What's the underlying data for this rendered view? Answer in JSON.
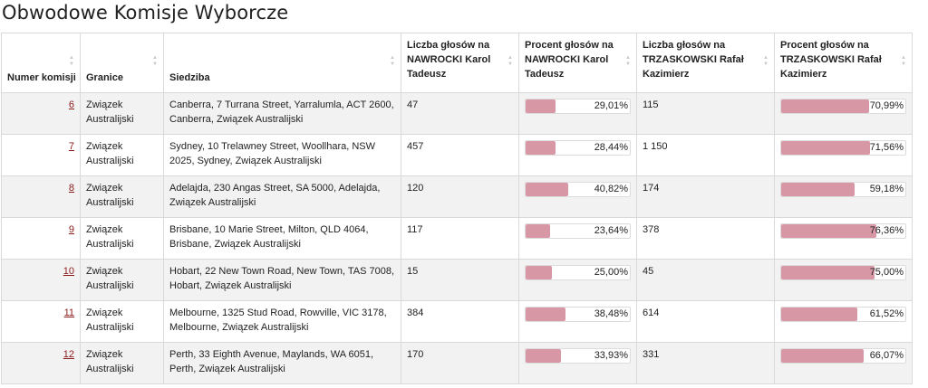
{
  "page_title": "Obwodowe Komisje Wyborcze",
  "colors": {
    "bar_fill": "#d897a4",
    "link": "#8b1a1a",
    "row_stripe": "#f2f2f2"
  },
  "table": {
    "headers": [
      "Numer komisji",
      "Granice",
      "Siedziba",
      "Liczba głosów na NAWROCKI Karol Tadeusz",
      "Procent głosów na NAWROCKI Karol Tadeusz",
      "Liczba głosów na TRZASKOWSKI Rafał Kazimierz",
      "Procent głosów na TRZASKOWSKI Rafał Kazimierz"
    ],
    "rows": [
      {
        "number": "6",
        "granice": "Związek Australijski",
        "siedziba": "Canberra, 7 Turrana Street, Yarralumla, ACT 2600, Canberra, Związek Australijski",
        "nawrocki_votes": "47",
        "nawrocki_pct": "29,01%",
        "nawrocki_frac": 0.2901,
        "trzaskowski_votes": "115",
        "trzaskowski_pct": "70,99%",
        "trzaskowski_frac": 0.7099
      },
      {
        "number": "7",
        "granice": "Związek Australijski",
        "siedziba": "Sydney, 10 Trelawney Street, Woollhara, NSW 2025, Sydney, Związek Australijski",
        "nawrocki_votes": "457",
        "nawrocki_pct": "28,44%",
        "nawrocki_frac": 0.2844,
        "trzaskowski_votes": "1 150",
        "trzaskowski_pct": "71,56%",
        "trzaskowski_frac": 0.7156
      },
      {
        "number": "8",
        "granice": "Związek Australijski",
        "siedziba": "Adelajda, 230 Angas Street, SA 5000, Adelajda, Związek Australijski",
        "nawrocki_votes": "120",
        "nawrocki_pct": "40,82%",
        "nawrocki_frac": 0.4082,
        "trzaskowski_votes": "174",
        "trzaskowski_pct": "59,18%",
        "trzaskowski_frac": 0.5918
      },
      {
        "number": "9",
        "granice": "Związek Australijski",
        "siedziba": "Brisbane, 10 Marie Street, Milton, QLD 4064, Brisbane, Związek Australijski",
        "nawrocki_votes": "117",
        "nawrocki_pct": "23,64%",
        "nawrocki_frac": 0.2364,
        "trzaskowski_votes": "378",
        "trzaskowski_pct": "76,36%",
        "trzaskowski_frac": 0.7636
      },
      {
        "number": "10",
        "granice": "Związek Australijski",
        "siedziba": "Hobart, 22 New Town Road, New Town, TAS 7008, Hobart, Związek Australijski",
        "nawrocki_votes": "15",
        "nawrocki_pct": "25,00%",
        "nawrocki_frac": 0.25,
        "trzaskowski_votes": "45",
        "trzaskowski_pct": "75,00%",
        "trzaskowski_frac": 0.75
      },
      {
        "number": "11",
        "granice": "Związek Australijski",
        "siedziba": "Melbourne, 1325 Stud Road, Rowville, VIC 3178, Melbourne, Związek Australijski",
        "nawrocki_votes": "384",
        "nawrocki_pct": "38,48%",
        "nawrocki_frac": 0.3848,
        "trzaskowski_votes": "614",
        "trzaskowski_pct": "61,52%",
        "trzaskowski_frac": 0.6152
      },
      {
        "number": "12",
        "granice": "Związek Australijski",
        "siedziba": "Perth, 33 Eighth Avenue, Maylands, WA 6051, Perth, Związek Australijski",
        "nawrocki_votes": "170",
        "nawrocki_pct": "33,93%",
        "nawrocki_frac": 0.3393,
        "trzaskowski_votes": "331",
        "trzaskowski_pct": "66,07%",
        "trzaskowski_frac": 0.6607
      }
    ]
  }
}
